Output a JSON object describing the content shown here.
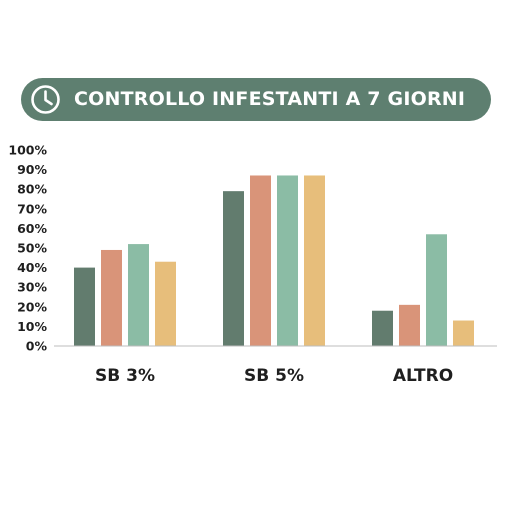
{
  "header": {
    "title": "CONTROLLO INFESTANTI A 7 GIORNI",
    "icon": "clock-icon",
    "background": "#5e7f70"
  },
  "chart_data": {
    "type": "bar",
    "title": "CONTROLLO INFESTANTI A 7 GIORNI",
    "xlabel": "",
    "ylabel": "",
    "categories": [
      "SB 3%",
      "SB 5%",
      "ALTRO"
    ],
    "ylim": [
      0,
      100
    ],
    "yticks": [
      "0%",
      "10%",
      "20%",
      "30%",
      "40%",
      "50%",
      "60%",
      "70%",
      "80%",
      "90%",
      "100%"
    ],
    "grid": false,
    "legend": "none",
    "series": [
      {
        "values": [
          40,
          79,
          18
        ],
        "color": "#627c6e"
      },
      {
        "values": [
          49,
          87,
          21
        ],
        "color": "#d99479"
      },
      {
        "values": [
          52,
          87,
          57
        ],
        "color": "#8bbca5"
      },
      {
        "values": [
          43,
          87,
          13
        ],
        "color": "#e7be7b"
      }
    ]
  }
}
